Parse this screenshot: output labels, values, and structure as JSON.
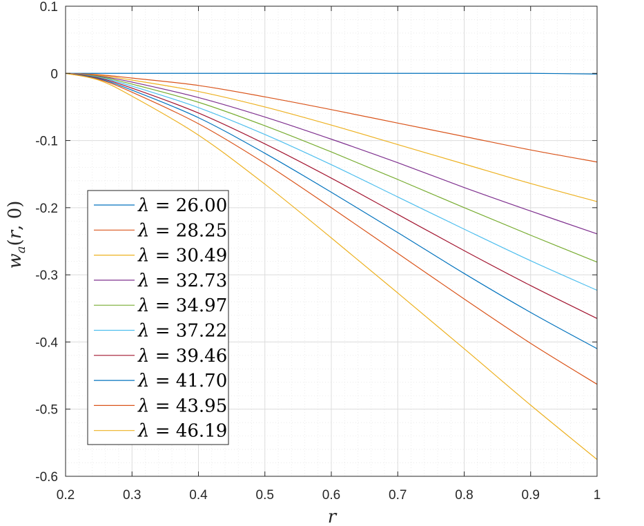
{
  "chart_data": {
    "type": "line",
    "title": "",
    "xlabel": "r",
    "ylabel": "w_a(r,0)",
    "xlim": [
      0.2,
      1.0
    ],
    "ylim": [
      -0.6,
      0.1
    ],
    "xticks": [
      0.2,
      0.3,
      0.4,
      0.5,
      0.6,
      0.7,
      0.8,
      0.9,
      1.0
    ],
    "xtick_labels": [
      "0.2",
      "0.3",
      "0.4",
      "0.5",
      "0.6",
      "0.7",
      "0.8",
      "0.9",
      "1"
    ],
    "yticks": [
      0.1,
      0,
      -0.1,
      -0.2,
      -0.3,
      -0.4,
      -0.5,
      -0.6
    ],
    "ytick_labels": [
      "0.1",
      "0",
      "-0.1",
      "-0.2",
      "-0.3",
      "-0.4",
      "-0.5",
      "-0.6"
    ],
    "grid": true,
    "minor_grid": true,
    "legend_position": "lower-left",
    "x": [
      0.2,
      0.25,
      0.3,
      0.4,
      0.5,
      0.6,
      0.7,
      0.8,
      0.9,
      1.0
    ],
    "series": [
      {
        "name": "λ = 26.00",
        "color": "#0072BD",
        "values": [
          0,
          0,
          0,
          0,
          0,
          0,
          0,
          0,
          0,
          -0.001
        ]
      },
      {
        "name": "λ = 28.25",
        "color": "#D95319",
        "values": [
          0,
          -0.002,
          -0.007,
          -0.018,
          -0.035,
          -0.054,
          -0.074,
          -0.094,
          -0.114,
          -0.132
        ]
      },
      {
        "name": "λ = 30.49",
        "color": "#EDB120",
        "values": [
          0,
          -0.003,
          -0.01,
          -0.027,
          -0.05,
          -0.077,
          -0.106,
          -0.135,
          -0.164,
          -0.191
        ]
      },
      {
        "name": "λ = 32.73",
        "color": "#7E2F8E",
        "values": [
          0,
          -0.004,
          -0.013,
          -0.036,
          -0.065,
          -0.098,
          -0.133,
          -0.17,
          -0.205,
          -0.239
        ]
      },
      {
        "name": "λ = 34.97",
        "color": "#77AC30",
        "values": [
          0,
          -0.005,
          -0.016,
          -0.043,
          -0.078,
          -0.117,
          -0.158,
          -0.2,
          -0.241,
          -0.281
        ]
      },
      {
        "name": "λ = 37.22",
        "color": "#4DBEEE",
        "values": [
          0,
          -0.006,
          -0.019,
          -0.051,
          -0.091,
          -0.136,
          -0.184,
          -0.232,
          -0.279,
          -0.323
        ]
      },
      {
        "name": "λ = 39.46",
        "color": "#A2142F",
        "values": [
          0,
          -0.007,
          -0.022,
          -0.059,
          -0.105,
          -0.156,
          -0.21,
          -0.264,
          -0.316,
          -0.365
        ]
      },
      {
        "name": "λ = 41.70",
        "color": "#0072BD",
        "values": [
          0,
          -0.008,
          -0.025,
          -0.066,
          -0.119,
          -0.177,
          -0.237,
          -0.298,
          -0.356,
          -0.41
        ]
      },
      {
        "name": "λ = 43.95",
        "color": "#D95319",
        "values": [
          0,
          -0.009,
          -0.028,
          -0.075,
          -0.134,
          -0.2,
          -0.268,
          -0.336,
          -0.402,
          -0.463
        ]
      },
      {
        "name": "λ = 46.19",
        "color": "#EDB120",
        "values": [
          0,
          -0.01,
          -0.034,
          -0.092,
          -0.165,
          -0.245,
          -0.327,
          -0.41,
          -0.494,
          -0.575
        ]
      }
    ]
  }
}
